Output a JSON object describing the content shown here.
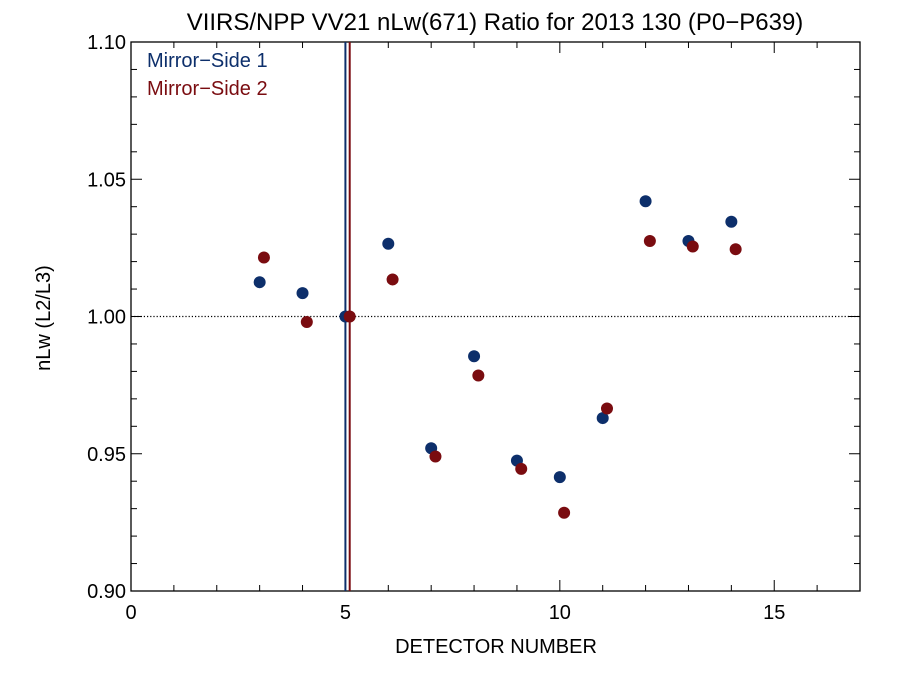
{
  "chart_data": {
    "type": "scatter",
    "title": "VIIRS/NPP VV21 nLw(671) Ratio for 2013 130 (P0−P639)",
    "xlabel": "DETECTOR NUMBER",
    "ylabel": "nLw (L2/L3)",
    "xlim": [
      0,
      17
    ],
    "ylim": [
      0.9,
      1.1
    ],
    "x_ticks": [
      "0",
      "5",
      "10",
      "15"
    ],
    "y_ticks": [
      "0.90",
      "0.95",
      "1.00",
      "1.05",
      "1.10"
    ],
    "grid": false,
    "reference_line": {
      "y": 1.0,
      "style": "dotted"
    },
    "vertical_lines": [
      {
        "x": 5.0,
        "color": "#0d2f6b"
      },
      {
        "x": 5.1,
        "color": "#7a0c10"
      }
    ],
    "legend_position": "top-left",
    "series": [
      {
        "name": "Mirror−Side 1",
        "color": "#0d2f6b",
        "x": [
          3,
          4,
          5,
          6,
          7,
          8,
          9,
          10,
          11,
          12,
          13,
          14
        ],
        "y": [
          1.0125,
          1.0085,
          1.0,
          1.0265,
          0.952,
          0.9855,
          0.9475,
          0.9415,
          0.963,
          1.042,
          1.0275,
          1.0345
        ]
      },
      {
        "name": "Mirror−Side 2",
        "color": "#7a0c10",
        "x": [
          3.1,
          4.1,
          5.1,
          6.1,
          7.1,
          8.1,
          9.1,
          10.1,
          11.1,
          12.1,
          13.1,
          14.1
        ],
        "y": [
          1.0215,
          0.998,
          1.0,
          1.0135,
          0.949,
          0.9785,
          0.9445,
          0.9285,
          0.9665,
          1.0275,
          1.0255,
          1.0245
        ]
      }
    ]
  }
}
